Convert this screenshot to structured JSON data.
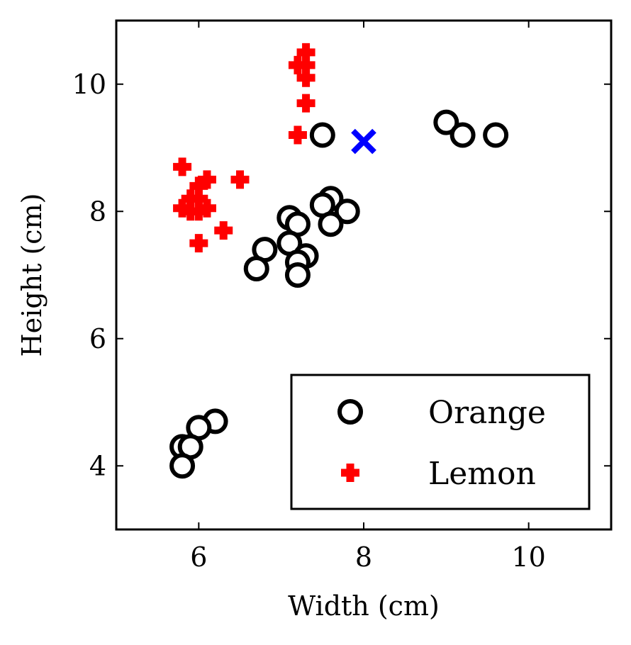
{
  "chart_data": {
    "type": "scatter",
    "xlabel": "Width (cm)",
    "ylabel": "Height (cm)",
    "xlim": [
      5,
      11
    ],
    "ylim": [
      3,
      11
    ],
    "xticks": [
      "6",
      "8",
      "10"
    ],
    "yticks": [
      "4",
      "6",
      "8",
      "10"
    ],
    "grid": false,
    "legend_position": "bottom-right",
    "series": [
      {
        "name": "Orange",
        "marker": "open-circle",
        "color": "#000000",
        "points": [
          [
            7.5,
            9.2
          ],
          [
            9.0,
            9.4
          ],
          [
            9.2,
            9.2
          ],
          [
            9.6,
            9.2
          ],
          [
            7.6,
            8.2
          ],
          [
            7.5,
            8.1
          ],
          [
            7.8,
            8.0
          ],
          [
            7.6,
            7.8
          ],
          [
            7.1,
            7.9
          ],
          [
            7.2,
            7.8
          ],
          [
            7.1,
            7.5
          ],
          [
            6.8,
            7.4
          ],
          [
            7.3,
            7.3
          ],
          [
            7.2,
            7.2
          ],
          [
            7.2,
            7.0
          ],
          [
            6.7,
            7.1
          ],
          [
            6.2,
            4.7
          ],
          [
            6.0,
            4.6
          ],
          [
            5.8,
            4.3
          ],
          [
            5.9,
            4.3
          ],
          [
            5.8,
            4.0
          ]
        ]
      },
      {
        "name": "Lemon",
        "marker": "plus",
        "color": "#ff0000",
        "points": [
          [
            7.3,
            10.5
          ],
          [
            7.2,
            10.3
          ],
          [
            7.3,
            10.3
          ],
          [
            7.3,
            10.1
          ],
          [
            7.3,
            9.7
          ],
          [
            7.2,
            9.2
          ],
          [
            5.8,
            8.7
          ],
          [
            6.1,
            8.5
          ],
          [
            6.5,
            8.5
          ],
          [
            6.0,
            8.4
          ],
          [
            6.0,
            8.2
          ],
          [
            5.9,
            8.2
          ],
          [
            5.8,
            8.05
          ],
          [
            6.1,
            8.05
          ],
          [
            5.9,
            8.0
          ],
          [
            6.0,
            8.0
          ],
          [
            6.3,
            7.7
          ],
          [
            6.0,
            7.5
          ]
        ]
      },
      {
        "name": "",
        "marker": "x",
        "color": "#0000ff",
        "points": [
          [
            8.0,
            9.1
          ]
        ]
      }
    ]
  }
}
